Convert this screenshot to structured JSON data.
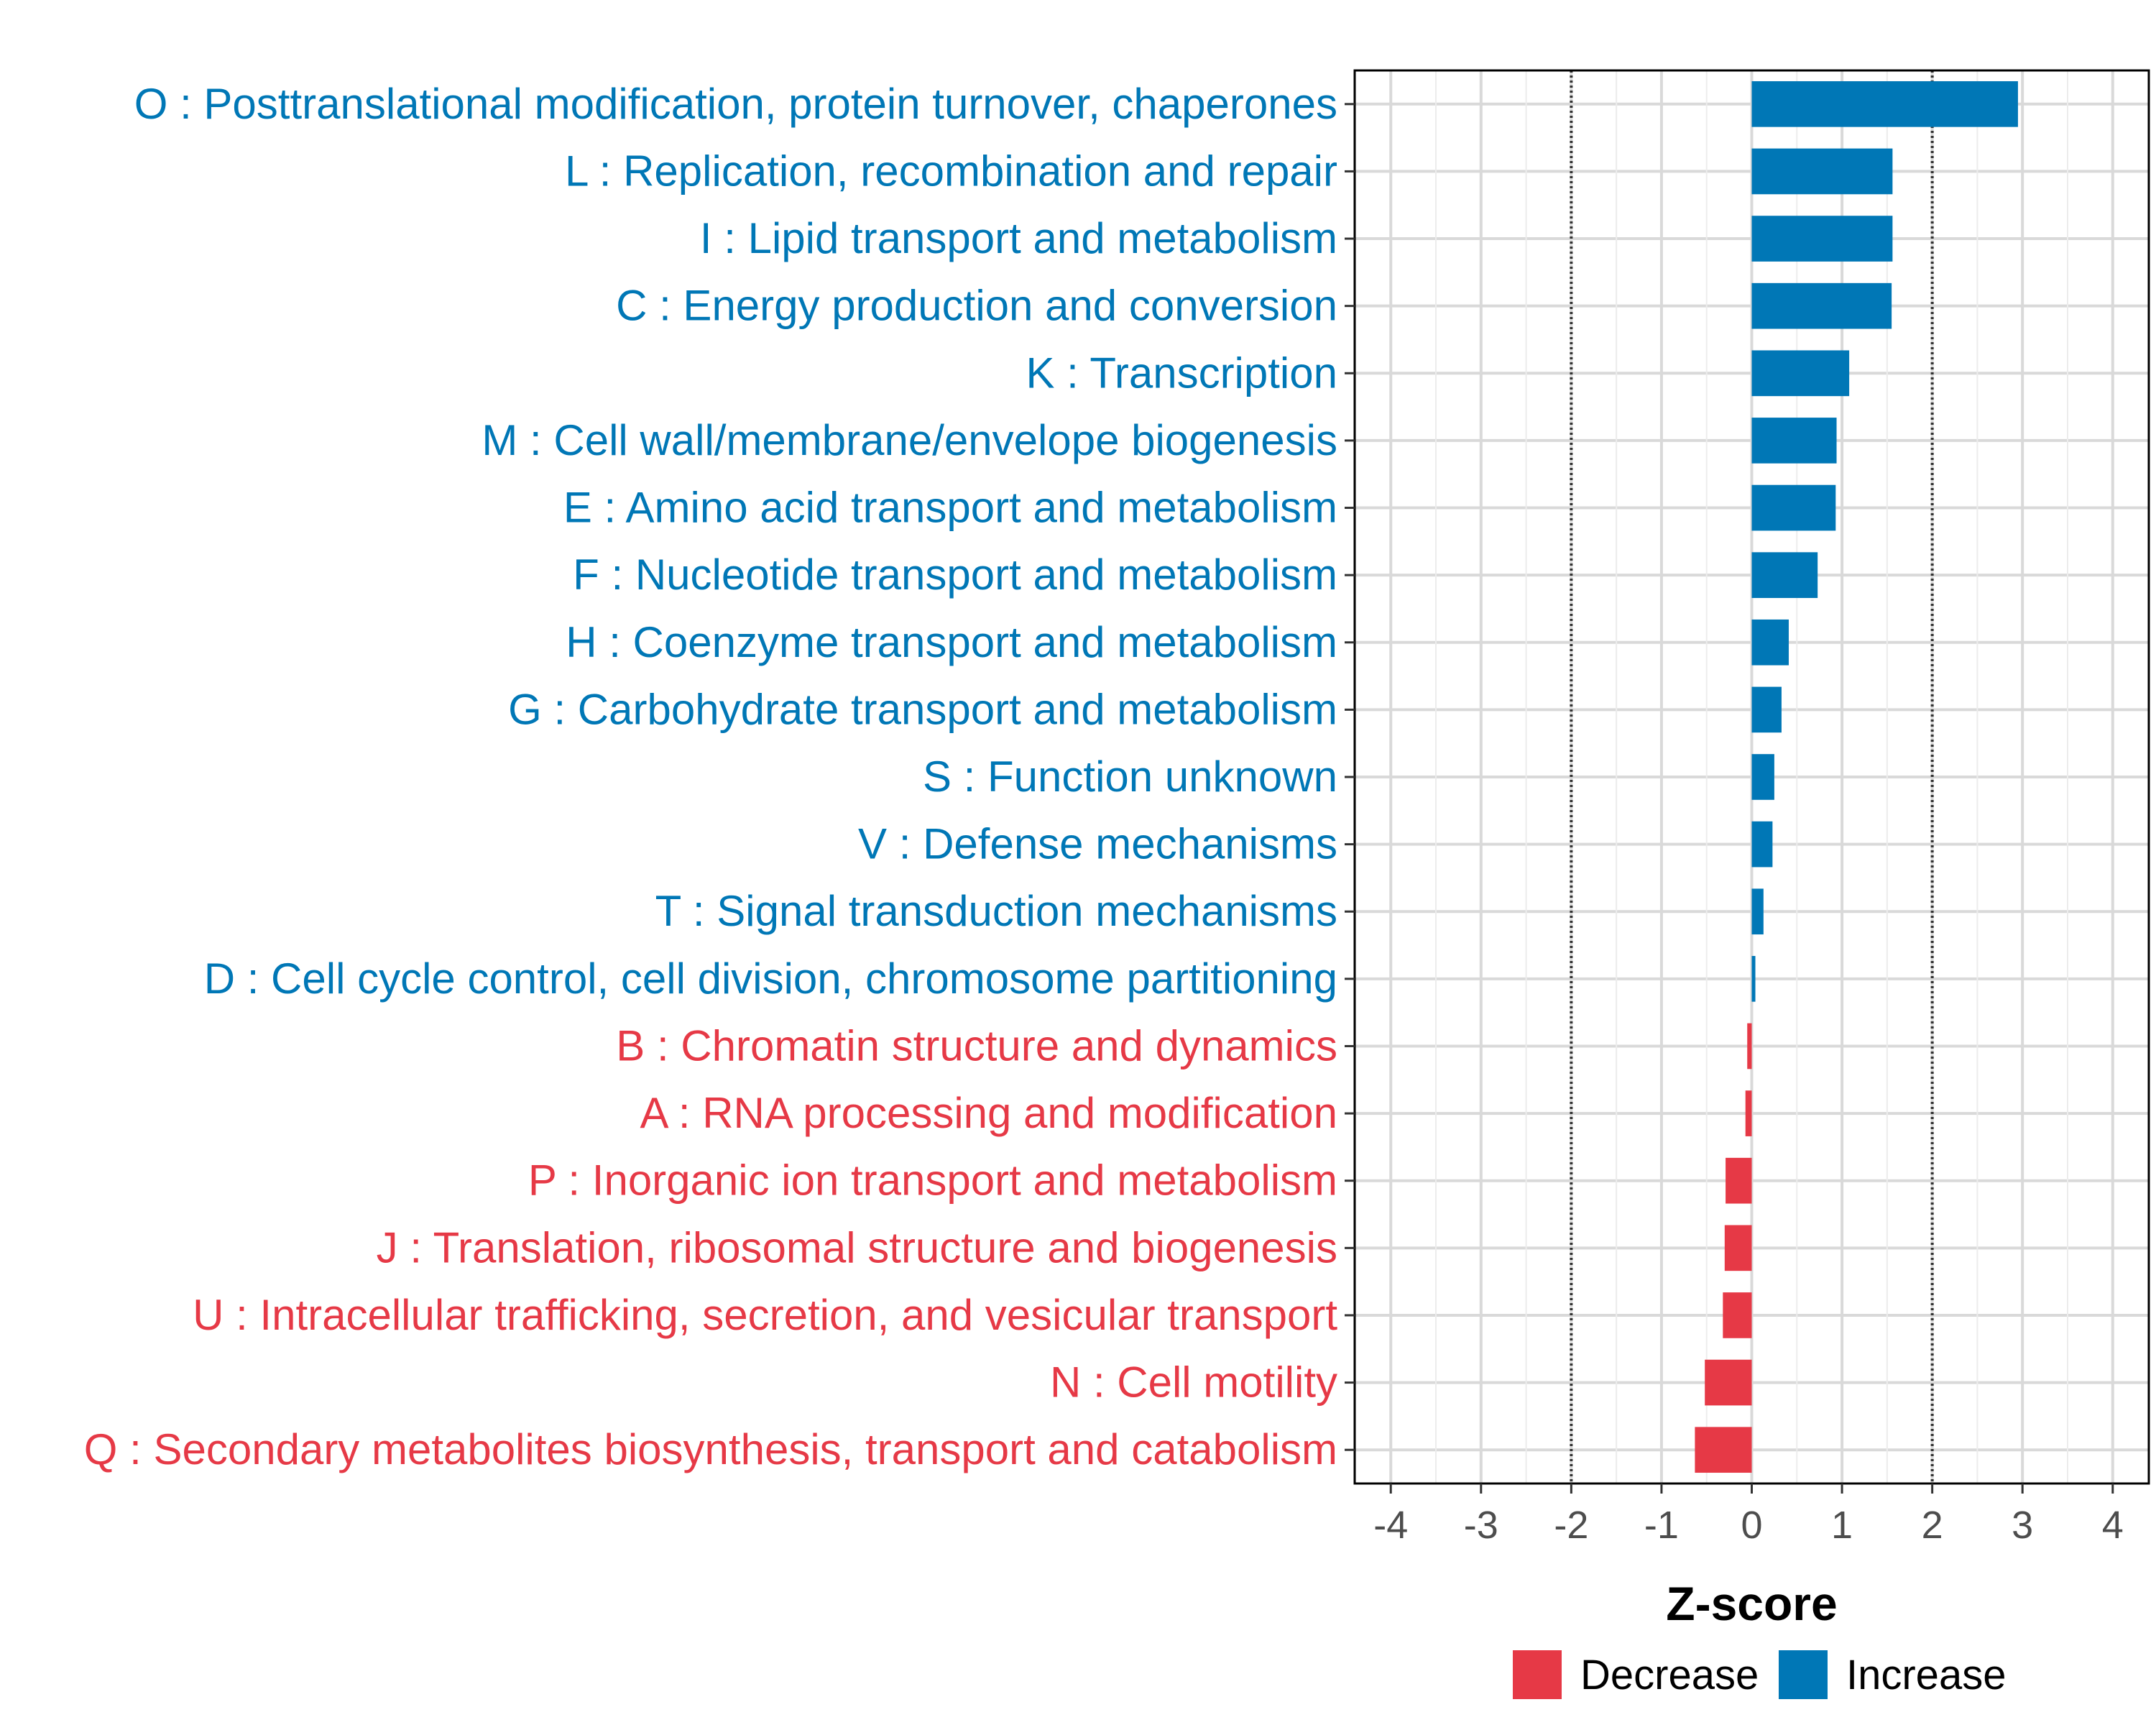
{
  "chart_data": {
    "type": "bar",
    "orientation": "horizontal",
    "xlabel": "Z-score",
    "ylabel": "",
    "xlim": [
      -4.4,
      4.4
    ],
    "x_ticks": [
      -4,
      -3,
      -2,
      -1,
      0,
      1,
      2,
      3,
      4
    ],
    "reference_lines": [
      -2,
      2
    ],
    "grid": true,
    "legend": {
      "position": "bottom",
      "entries": [
        {
          "label": "Decrease",
          "color": "#E63946"
        },
        {
          "label": "Increase",
          "color": "#0077B6"
        }
      ]
    },
    "categories": [
      "O : Posttranslational modification, protein turnover, chaperones",
      "L : Replication, recombination and repair",
      "I : Lipid transport and metabolism",
      "C : Energy production and conversion",
      "K : Transcription",
      "M : Cell wall/membrane/envelope biogenesis",
      "E : Amino acid transport and metabolism",
      "F : Nucleotide transport and metabolism",
      "H : Coenzyme transport and metabolism",
      "G : Carbohydrate transport and metabolism",
      "S : Function unknown",
      "V : Defense mechanisms",
      "T : Signal transduction mechanisms",
      "D : Cell cycle control, cell division, chromosome partitioning",
      "B : Chromatin structure and dynamics",
      "A : RNA processing and modification",
      "P : Inorganic ion transport and metabolism",
      "J : Translation, ribosomal structure and biogenesis",
      "U : Intracellular trafficking, secretion, and vesicular transport",
      "N : Cell motility",
      "Q : Secondary metabolites biosynthesis, transport and catabolism"
    ],
    "values": [
      2.95,
      1.56,
      1.56,
      1.55,
      1.08,
      0.94,
      0.93,
      0.73,
      0.41,
      0.33,
      0.25,
      0.23,
      0.13,
      0.04,
      -0.05,
      -0.07,
      -0.29,
      -0.3,
      -0.32,
      -0.52,
      -0.63
    ],
    "colors": {
      "increase": "#0077B6",
      "decrease": "#E63946"
    }
  }
}
